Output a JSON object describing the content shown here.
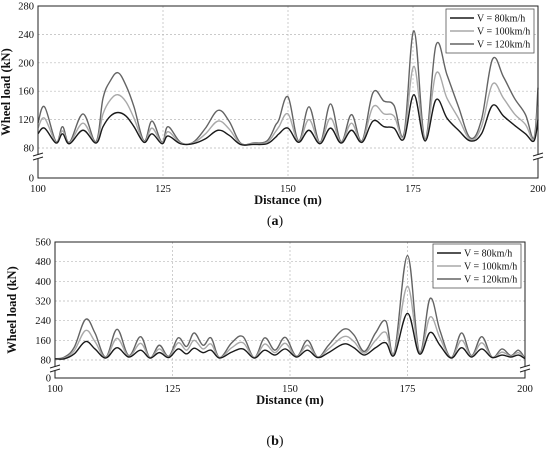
{
  "chart_data": [
    {
      "type": "line",
      "caption_letter": "a",
      "xlabel": "Distance (m)",
      "ylabel": "Wheel load (kN)",
      "xlim": [
        100,
        200
      ],
      "ylim": [
        0,
        280
      ],
      "axis_break": true,
      "x_ticks": [
        100,
        125,
        150,
        175,
        200
      ],
      "y_ticks": [
        0,
        80,
        120,
        160,
        200,
        240,
        280
      ],
      "grid": true,
      "legend_position": "top-right",
      "series": [
        {
          "name": "V = 80km/h",
          "color": "#1a1a1a",
          "x": [
            100,
            101.3,
            103.6,
            104.9,
            106.3,
            109,
            111.6,
            113,
            114.5,
            116,
            117.6,
            119.2,
            121.2,
            122.8,
            124.8,
            126,
            128.5,
            131,
            133.5,
            136,
            138.2,
            140.5,
            143,
            145.8,
            147.5,
            148.2,
            150,
            152.1,
            154.2,
            156.4,
            158.5,
            160.6,
            162.7,
            164.8,
            167,
            169.2,
            171.2,
            173.2,
            175.2,
            177.4,
            179.6,
            181.8,
            184.1,
            186.5,
            188.7,
            190.9,
            193.1,
            195.3,
            197.5,
            199.2,
            200
          ],
          "y": [
            100,
            108,
            87,
            100,
            86,
            105,
            87,
            110,
            125,
            130,
            125,
            110,
            88,
            100,
            86,
            97,
            86,
            86,
            93,
            105,
            98,
            85,
            85,
            86,
            95,
            100,
            108,
            88,
            105,
            86,
            108,
            87,
            105,
            88,
            118,
            110,
            108,
            93,
            155,
            90,
            148,
            122,
            105,
            90,
            100,
            140,
            125,
            112,
            100,
            90,
            120
          ]
        },
        {
          "name": "V = 100km/h",
          "color": "#a9a9a9",
          "x": [
            100,
            101.3,
            103.6,
            104.9,
            106.3,
            109,
            111.6,
            113,
            114.5,
            116,
            117.6,
            119.2,
            121.2,
            122.8,
            124.8,
            126,
            128.5,
            131,
            133.5,
            136,
            138.2,
            140.5,
            143,
            145.8,
            147.5,
            148.2,
            150,
            152.1,
            154.2,
            156.4,
            158.5,
            160.6,
            162.7,
            164.8,
            167,
            169.2,
            171.2,
            173.2,
            175.2,
            177.4,
            179.6,
            181.8,
            184.1,
            186.5,
            188.7,
            190.9,
            193.1,
            195.3,
            197.5,
            199.2,
            200
          ],
          "y": [
            108,
            122,
            88,
            104,
            87,
            115,
            88,
            128,
            148,
            155,
            145,
            122,
            89,
            108,
            87,
            103,
            87,
            87,
            100,
            118,
            107,
            86,
            86,
            88,
            103,
            110,
            128,
            89,
            120,
            87,
            122,
            88,
            115,
            89,
            138,
            128,
            125,
            97,
            195,
            91,
            185,
            150,
            122,
            92,
            110,
            170,
            150,
            128,
            113,
            92,
            140
          ]
        },
        {
          "name": "V = 120km/h",
          "color": "#646464",
          "x": [
            100,
            101.3,
            103.6,
            104.9,
            106.3,
            109,
            111.6,
            113,
            114.5,
            116,
            117.6,
            119.2,
            121.2,
            122.8,
            124.8,
            126,
            128.5,
            131,
            133.5,
            136,
            138.2,
            140.5,
            143,
            145.8,
            147.5,
            148.2,
            150,
            152.1,
            154.2,
            156.4,
            158.5,
            160.6,
            162.7,
            164.8,
            167,
            169.2,
            171.2,
            173.2,
            175.2,
            177.4,
            179.6,
            181.8,
            184.1,
            186.5,
            188.7,
            190.9,
            193.1,
            195.3,
            197.5,
            199.2,
            200
          ],
          "y": [
            115,
            138,
            89,
            110,
            88,
            128,
            89,
            150,
            175,
            186,
            168,
            138,
            90,
            118,
            88,
            110,
            88,
            88,
            108,
            133,
            118,
            87,
            87,
            90,
            112,
            120,
            152,
            90,
            138,
            88,
            142,
            89,
            127,
            90,
            158,
            146,
            140,
            100,
            245,
            92,
            225,
            183,
            138,
            94,
            120,
            205,
            180,
            150,
            127,
            94,
            165
          ]
        }
      ]
    },
    {
      "type": "line",
      "caption_letter": "b",
      "xlabel": "Distance (m)",
      "ylabel": "Wheel load (kN)",
      "xlim": [
        100,
        200
      ],
      "ylim": [
        0,
        560
      ],
      "axis_break": true,
      "x_ticks": [
        100,
        125,
        150,
        175,
        200
      ],
      "y_ticks": [
        0,
        80,
        160,
        240,
        320,
        400,
        480,
        560
      ],
      "grid": true,
      "legend_position": "top-right",
      "series": [
        {
          "name": "V = 80km/h",
          "color": "#1a1a1a",
          "x": [
            100,
            102,
            104.1,
            106.5,
            108.5,
            110.8,
            113.2,
            115.7,
            118.2,
            120.2,
            122.2,
            124.2,
            126.2,
            128,
            129.6,
            131.5,
            133.2,
            135,
            137.6,
            140,
            142.4,
            144.6,
            146.8,
            149,
            151.4,
            153.7,
            155.9,
            158.2,
            161.4,
            163.6,
            165.8,
            168.2,
            170.4,
            172.2,
            175,
            177.5,
            179.8,
            181.9,
            184.3,
            186.5,
            188.6,
            190.8,
            193,
            195.1,
            197,
            198.6,
            200
          ],
          "y": [
            85,
            85,
            105,
            155,
            125,
            88,
            130,
            92,
            120,
            88,
            110,
            90,
            125,
            105,
            128,
            110,
            120,
            88,
            112,
            125,
            88,
            120,
            100,
            125,
            92,
            120,
            90,
            110,
            145,
            130,
            100,
            130,
            150,
            100,
            270,
            105,
            192,
            140,
            88,
            130,
            92,
            125,
            90,
            100,
            92,
            100,
            85
          ]
        },
        {
          "name": "V = 100km/h",
          "color": "#a9a9a9",
          "x": [
            100,
            102,
            104.1,
            106.5,
            108.5,
            110.8,
            113.2,
            115.7,
            118.2,
            120.2,
            122.2,
            124.2,
            126.2,
            128,
            129.6,
            131.5,
            133.2,
            135,
            137.6,
            140,
            142.4,
            144.6,
            146.8,
            149,
            151.4,
            153.7,
            155.9,
            158.2,
            161.4,
            163.6,
            165.8,
            168.2,
            170.4,
            172.2,
            175,
            177.5,
            179.8,
            181.9,
            184.3,
            186.5,
            188.6,
            190.8,
            193,
            195.1,
            197,
            198.6,
            200
          ],
          "y": [
            85,
            88,
            118,
            200,
            155,
            90,
            168,
            95,
            148,
            89,
            125,
            92,
            150,
            120,
            160,
            125,
            145,
            89,
            130,
            150,
            89,
            145,
            110,
            148,
            93,
            140,
            91,
            125,
            175,
            155,
            108,
            160,
            192,
            105,
            380,
            108,
            255,
            170,
            89,
            160,
            95,
            150,
            91,
            112,
            95,
            110,
            85
          ]
        },
        {
          "name": "V = 120km/h",
          "color": "#646464",
          "x": [
            100,
            102,
            104.1,
            106.5,
            108.5,
            110.8,
            113.2,
            115.7,
            118.2,
            120.2,
            122.2,
            124.2,
            126.2,
            128,
            129.6,
            131.5,
            133.2,
            135,
            137.6,
            140,
            142.4,
            144.6,
            146.8,
            149,
            151.4,
            153.7,
            155.9,
            158.2,
            161.4,
            163.6,
            165.8,
            168.2,
            170.4,
            172.2,
            175,
            177.5,
            179.8,
            181.9,
            184.3,
            186.5,
            188.6,
            190.8,
            193,
            195.1,
            197,
            198.6,
            200
          ],
          "y": [
            85,
            92,
            132,
            245,
            190,
            92,
            205,
            98,
            175,
            90,
            140,
            95,
            170,
            135,
            190,
            140,
            170,
            90,
            150,
            175,
            90,
            170,
            120,
            172,
            95,
            160,
            92,
            140,
            205,
            182,
            115,
            190,
            238,
            110,
            505,
            112,
            330,
            200,
            90,
            190,
            98,
            175,
            92,
            125,
            98,
            120,
            86
          ]
        }
      ]
    }
  ]
}
